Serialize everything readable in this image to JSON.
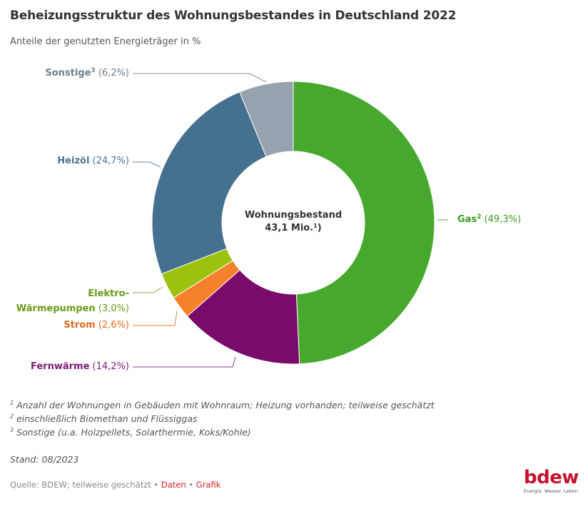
{
  "title": "Beheizungsstruktur des Wohnungsbestandes in Deutschland 2022",
  "subtitle": "Anteile der genutzten Energieträger in %",
  "center": {
    "line1": "Wohnungsbestand",
    "line2": "43,1 Mio.",
    "line2_sup": "1",
    "line2_suffix": ")"
  },
  "chart_data": {
    "type": "pie",
    "variant": "donut",
    "title": "Beheizungsstruktur des Wohnungsbestandes in Deutschland 2022",
    "subtitle": "Anteile der genutzten Energieträger in %",
    "unit": "%",
    "start": "12 o'clock, clockwise",
    "slices": [
      {
        "name": "Gas",
        "sup": "2",
        "value": 49.3,
        "value_label": "(49,3%)",
        "color": "#47a82e",
        "text_color": "#3a9a22"
      },
      {
        "name": "Fernwärme",
        "sup": "",
        "value": 14.2,
        "value_label": "(14,2%)",
        "color": "#7a0a6b",
        "text_color": "#7a1a70"
      },
      {
        "name": "Strom",
        "sup": "",
        "value": 2.6,
        "value_label": "(2,6%)",
        "color": "#f5822a",
        "text_color": "#e06a18"
      },
      {
        "name": "Elektro-Wärmepumpen",
        "name_line1": "Elektro-",
        "name_line2": "Wärmepumpen",
        "sup": "",
        "value": 3.0,
        "value_label": "(3,0%)",
        "color": "#9cc20e",
        "text_color": "#6a9a1a"
      },
      {
        "name": "Heizöl",
        "sup": "",
        "value": 24.7,
        "value_label": "(24,7%)",
        "color": "#46708f",
        "text_color": "#4a7290"
      },
      {
        "name": "Sonstige",
        "sup": "3",
        "value": 6.2,
        "value_label": "(6,2%)",
        "color": "#96a3ae",
        "text_color": "#6c7d8c"
      }
    ],
    "center_label": "Wohnungsbestand 43,1 Mio.¹)"
  },
  "footnotes": [
    {
      "sup": "1",
      "text": "Anzahl der Wohnungen in Gebäuden mit Wohnraum; Heizung vorhanden; teilweise geschätzt"
    },
    {
      "sup": "2",
      "text": "einschließlich Biomethan und Flüssiggas"
    },
    {
      "sup": "3",
      "text": "Sonstige (u.a. Holzpellets, Solarthermie, Koks/Kohle)"
    }
  ],
  "stand": "Stand: 08/2023",
  "source": {
    "text": "Quelle: BDEW; teilweise geschätzt",
    "sep": " • ",
    "link_data": "Daten",
    "link_grafik": "Grafik"
  },
  "logo": {
    "word": "bdew",
    "tagline": "Energie. Wasser. Leben."
  }
}
